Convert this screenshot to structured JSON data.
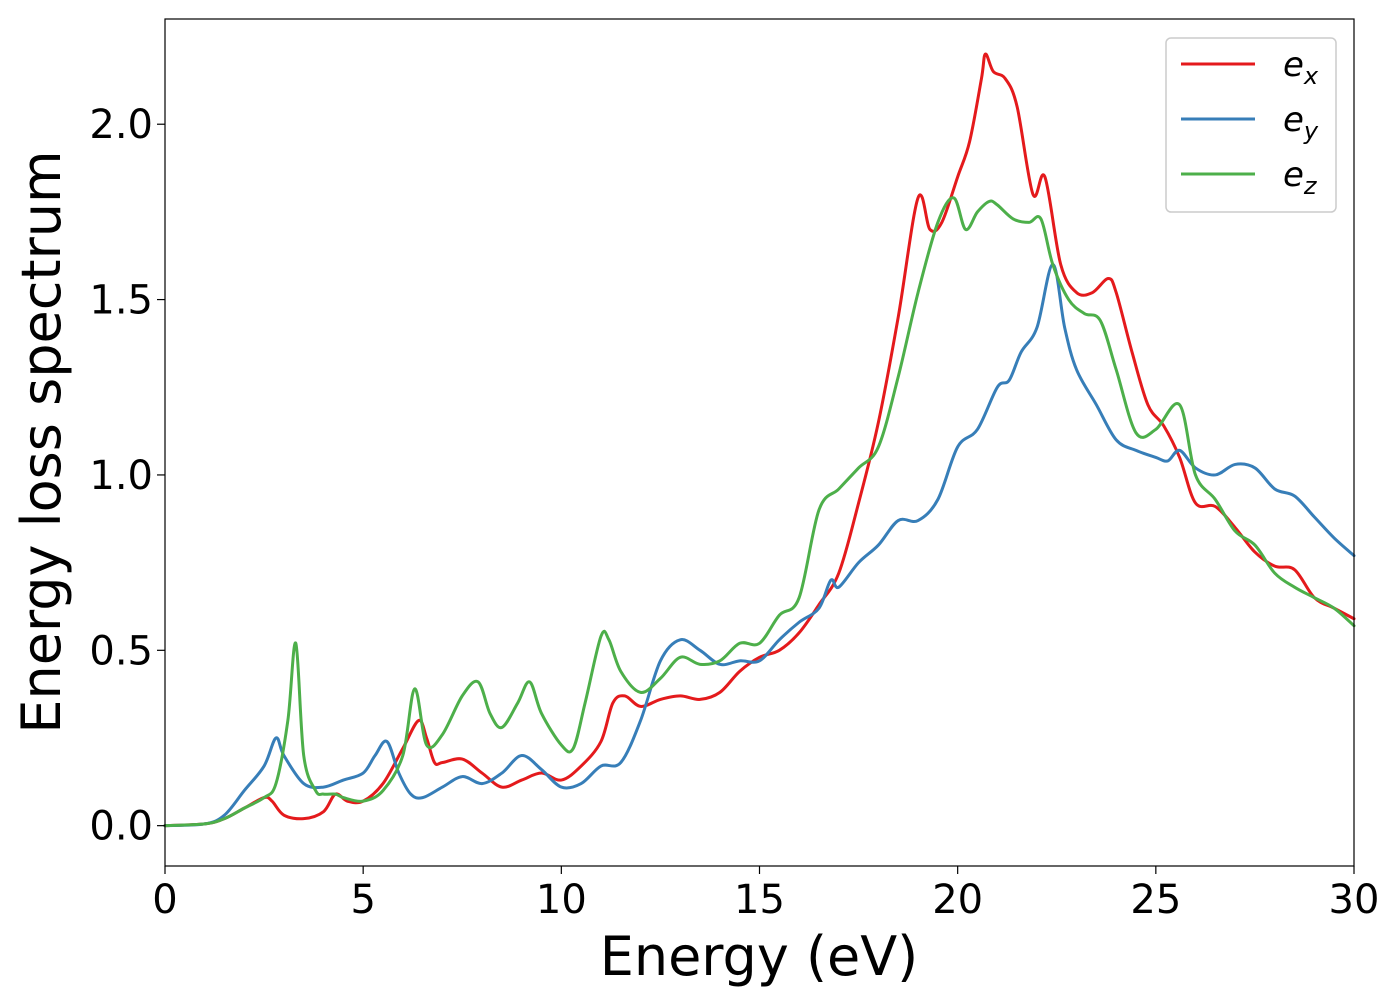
{
  "chart_data": {
    "type": "line",
    "xlabel": "Energy (eV)",
    "ylabel": "Energy loss spectrum",
    "xlim": [
      0,
      30
    ],
    "ylim": [
      -0.115,
      2.3
    ],
    "xticks": [
      0,
      5,
      10,
      15,
      20,
      25,
      30
    ],
    "xtick_labels": [
      "0",
      "5",
      "10",
      "15",
      "20",
      "25",
      "30"
    ],
    "yticks": [
      0.0,
      0.5,
      1.0,
      1.5,
      2.0
    ],
    "ytick_labels": [
      "0.0",
      "0.5",
      "1.0",
      "1.5",
      "2.0"
    ],
    "grid": false,
    "legend_position": "top-right",
    "series": [
      {
        "name": "e",
        "subscript": "x",
        "color": "#e41a1c",
        "x": [
          0,
          1,
          1.5,
          2,
          2.5,
          2.7,
          3,
          3.5,
          4,
          4.3,
          4.6,
          5,
          5.5,
          6,
          6.4,
          6.6,
          6.8,
          7,
          7.5,
          8,
          8.5,
          9,
          9.5,
          10,
          10.5,
          11,
          11.3,
          11.6,
          12,
          12.5,
          13,
          13.5,
          14,
          14.5,
          15,
          15.5,
          16,
          16.5,
          17,
          17.5,
          18,
          18.5,
          19,
          19.3,
          19.6,
          20,
          20.3,
          20.6,
          20.7,
          20.9,
          21.2,
          21.5,
          21.9,
          22.2,
          22.6,
          23,
          23.4,
          23.8,
          24,
          24.4,
          24.8,
          25.2,
          25.6,
          26,
          26.5,
          27,
          27.5,
          28,
          28.5,
          29,
          29.5,
          30
        ],
        "values": [
          0,
          0.005,
          0.02,
          0.05,
          0.08,
          0.07,
          0.03,
          0.02,
          0.04,
          0.09,
          0.07,
          0.07,
          0.12,
          0.22,
          0.3,
          0.25,
          0.18,
          0.18,
          0.19,
          0.15,
          0.11,
          0.13,
          0.15,
          0.13,
          0.17,
          0.24,
          0.35,
          0.37,
          0.34,
          0.36,
          0.37,
          0.36,
          0.38,
          0.44,
          0.48,
          0.5,
          0.55,
          0.63,
          0.72,
          0.92,
          1.15,
          1.45,
          1.79,
          1.7,
          1.72,
          1.85,
          1.95,
          2.13,
          2.2,
          2.15,
          2.13,
          2.05,
          1.8,
          1.85,
          1.6,
          1.52,
          1.52,
          1.56,
          1.52,
          1.35,
          1.2,
          1.14,
          1.05,
          0.92,
          0.91,
          0.85,
          0.78,
          0.74,
          0.73,
          0.65,
          0.62,
          0.59
        ]
      },
      {
        "name": "e",
        "subscript": "y",
        "color": "#377eb8",
        "x": [
          0,
          1,
          1.5,
          2,
          2.5,
          2.8,
          3,
          3.5,
          4,
          4.5,
          5,
          5.3,
          5.6,
          5.9,
          6.2,
          6.5,
          7,
          7.5,
          8,
          8.5,
          9,
          9.5,
          10,
          10.5,
          11,
          11.5,
          12,
          12.5,
          13,
          13.5,
          14,
          14.5,
          15,
          15.5,
          16,
          16.5,
          16.8,
          17,
          17.5,
          18,
          18.5,
          19,
          19.5,
          20,
          20.5,
          21,
          21.3,
          21.6,
          22,
          22.4,
          22.7,
          23,
          23.5,
          24,
          24.5,
          25,
          25.3,
          25.6,
          26,
          26.5,
          27,
          27.5,
          28,
          28.5,
          29,
          29.5,
          30
        ],
        "values": [
          0,
          0.005,
          0.03,
          0.1,
          0.17,
          0.25,
          0.2,
          0.12,
          0.11,
          0.13,
          0.15,
          0.2,
          0.24,
          0.15,
          0.09,
          0.08,
          0.11,
          0.14,
          0.12,
          0.15,
          0.2,
          0.16,
          0.11,
          0.12,
          0.17,
          0.18,
          0.3,
          0.47,
          0.53,
          0.5,
          0.46,
          0.47,
          0.47,
          0.53,
          0.58,
          0.62,
          0.7,
          0.68,
          0.75,
          0.8,
          0.87,
          0.87,
          0.93,
          1.08,
          1.13,
          1.25,
          1.27,
          1.35,
          1.42,
          1.6,
          1.42,
          1.3,
          1.2,
          1.1,
          1.07,
          1.05,
          1.04,
          1.07,
          1.02,
          1.0,
          1.03,
          1.02,
          0.96,
          0.94,
          0.88,
          0.82,
          0.77
        ]
      },
      {
        "name": "e",
        "subscript": "z",
        "color": "#4daf4a",
        "x": [
          0,
          1,
          1.5,
          2,
          2.5,
          2.8,
          3.1,
          3.3,
          3.5,
          3.8,
          4,
          4.3,
          4.5,
          5,
          5.5,
          6,
          6.3,
          6.6,
          7,
          7.5,
          7.9,
          8.2,
          8.5,
          8.9,
          9.2,
          9.5,
          10,
          10.3,
          10.6,
          11,
          11.2,
          11.5,
          12,
          12.5,
          13,
          13.5,
          14,
          14.5,
          15,
          15.5,
          16,
          16.5,
          17,
          17.5,
          18,
          18.5,
          19,
          19.5,
          19.9,
          20.2,
          20.5,
          20.8,
          21,
          21.4,
          21.8,
          22.1,
          22.4,
          22.8,
          23.2,
          23.6,
          24,
          24.5,
          25,
          25.6,
          26,
          26.5,
          27,
          27.5,
          28,
          28.5,
          29,
          29.5,
          30
        ],
        "values": [
          0,
          0.005,
          0.02,
          0.05,
          0.08,
          0.12,
          0.3,
          0.52,
          0.2,
          0.1,
          0.09,
          0.09,
          0.08,
          0.07,
          0.1,
          0.2,
          0.39,
          0.23,
          0.26,
          0.37,
          0.41,
          0.32,
          0.28,
          0.35,
          0.41,
          0.32,
          0.23,
          0.22,
          0.35,
          0.54,
          0.53,
          0.44,
          0.38,
          0.42,
          0.48,
          0.46,
          0.47,
          0.52,
          0.52,
          0.6,
          0.65,
          0.9,
          0.96,
          1.02,
          1.08,
          1.28,
          1.52,
          1.72,
          1.79,
          1.7,
          1.75,
          1.78,
          1.77,
          1.73,
          1.72,
          1.73,
          1.6,
          1.5,
          1.46,
          1.44,
          1.3,
          1.12,
          1.13,
          1.2,
          1.0,
          0.93,
          0.84,
          0.8,
          0.72,
          0.68,
          0.65,
          0.62,
          0.57
        ]
      }
    ]
  }
}
